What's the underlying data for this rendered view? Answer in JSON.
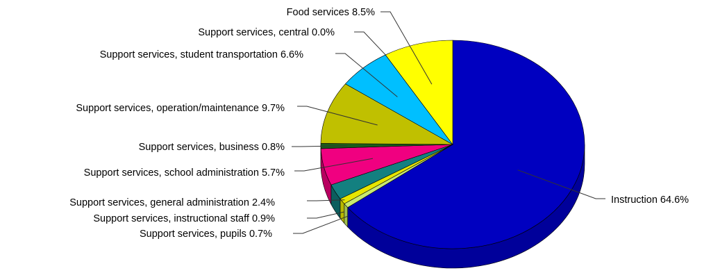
{
  "chart_data": {
    "type": "pie",
    "title": "",
    "style": "3d",
    "slices": [
      {
        "label": "Instruction",
        "value": 64.6,
        "value_text": "64.6%",
        "color": "#0000C0",
        "side_color": "#00009A"
      },
      {
        "label": "Support services, pupils",
        "value": 0.7,
        "value_text": "0.7%",
        "color": "#C8E870",
        "side_color": "#9FBE4E"
      },
      {
        "label": "Support services, instructional staff",
        "value": 0.9,
        "value_text": "0.9%",
        "color": "#E6E600",
        "side_color": "#B8B800"
      },
      {
        "label": "Support services, general administration",
        "value": 2.4,
        "value_text": "2.4%",
        "color": "#138080",
        "side_color": "#0C5E5E"
      },
      {
        "label": "Support services, school administration",
        "value": 5.7,
        "value_text": "5.7%",
        "color": "#F00080",
        "side_color": "#B80060"
      },
      {
        "label": "Support services, business",
        "value": 0.8,
        "value_text": "0.8%",
        "color": "#1A5C1A",
        "side_color": "#0F400F"
      },
      {
        "label": "Support services, operation/maintenance",
        "value": 9.7,
        "value_text": "9.7%",
        "color": "#C0C000",
        "side_color": "#969600"
      },
      {
        "label": "Support services, student transportation",
        "value": 6.6,
        "value_text": "6.6%",
        "color": "#00BFFF",
        "side_color": "#0090C0"
      },
      {
        "label": "Support services, central",
        "value": 0.0,
        "value_text": "0.0%",
        "color": "#8080FF",
        "side_color": "#6060C0"
      },
      {
        "label": "Food services",
        "value": 8.5,
        "value_text": "8.5%",
        "color": "#FFFF00",
        "side_color": "#C8C800"
      }
    ]
  }
}
